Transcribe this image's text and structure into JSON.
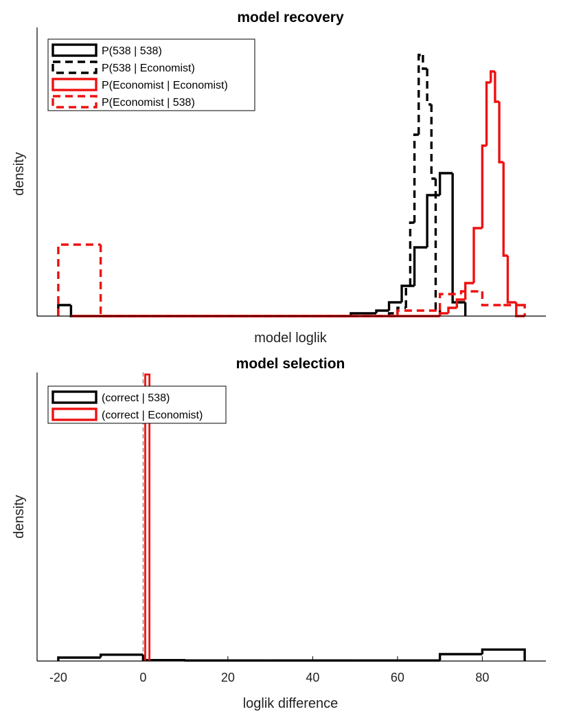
{
  "colors": {
    "black": "#000000",
    "red": "#ee1111"
  },
  "chart_data": [
    {
      "type": "histogram",
      "title": "model recovery",
      "xlabel": "model loglik",
      "ylabel": "density",
      "xlim": [
        -25,
        95
      ],
      "ylim": [
        0,
        1
      ],
      "y_ticks_shown": false,
      "legend_placement": "top-left",
      "series": [
        {
          "name": "P(538 | 538)",
          "color": "#000000",
          "style": "solid",
          "edges": [
            -20,
            -17,
            -14,
            -11,
            -8,
            -5,
            -2,
            1,
            4,
            7,
            10,
            13,
            16,
            19,
            22,
            25,
            28,
            31,
            34,
            37,
            40,
            43,
            46,
            49,
            52,
            55,
            58,
            61,
            64,
            67,
            70,
            73,
            76
          ],
          "density": [
            0.04,
            0,
            0,
            0,
            0,
            0,
            0,
            0,
            0,
            0,
            0,
            0,
            0,
            0,
            0,
            0,
            0,
            0,
            0,
            0,
            0,
            0,
            0,
            0.01,
            0.01,
            0.02,
            0.05,
            0.11,
            0.25,
            0.44,
            0.52,
            0.05,
            0
          ]
        },
        {
          "name": "P(538 | Economist)",
          "color": "#000000",
          "style": "dashed",
          "edges": [
            58,
            60,
            62,
            63,
            64,
            65,
            66,
            67,
            68,
            69,
            70
          ],
          "density": [
            0.01,
            0.03,
            0.11,
            0.34,
            0.66,
            0.95,
            0.9,
            0.77,
            0.5,
            0.02
          ]
        },
        {
          "name": "P(Economist | Economist)",
          "color": "#ee1111",
          "style": "solid",
          "edges": [
            -17,
            70,
            72,
            74,
            76,
            78,
            80,
            81,
            82,
            83,
            84,
            85,
            86,
            88,
            90
          ],
          "density": [
            0,
            0.01,
            0.03,
            0.06,
            0.12,
            0.32,
            0.62,
            0.85,
            0.89,
            0.78,
            0.56,
            0.22,
            0.05,
            0
          ]
        },
        {
          "name": "P(Economist | 538)",
          "color": "#ee1111",
          "style": "dashed",
          "edges": [
            -20,
            -10,
            60,
            70,
            75,
            80,
            85,
            89,
            90
          ],
          "density": [
            0.26,
            0,
            0.02,
            0.08,
            0.09,
            0.04,
            0.04,
            0.04
          ]
        }
      ]
    },
    {
      "type": "histogram",
      "title": "model selection",
      "xlabel": "loglik difference",
      "ylabel": "density",
      "xlim": [
        -25,
        95
      ],
      "ylim": [
        0,
        1
      ],
      "y_ticks_shown": false,
      "x_ticks": [
        -20,
        0,
        20,
        40,
        60,
        80
      ],
      "legend_placement": "top-left",
      "reference_line_x": 0,
      "series": [
        {
          "name": "(correct | 538)",
          "color": "#000000",
          "style": "solid",
          "edges": [
            -20,
            -10,
            0,
            10,
            20,
            30,
            40,
            50,
            60,
            70,
            80,
            90
          ],
          "density": [
            0.012,
            0.022,
            0.003,
            0.002,
            0.002,
            0.002,
            0.002,
            0.002,
            0.002,
            0.024,
            0.04
          ]
        },
        {
          "name": "(correct | Economist)",
          "color": "#ee1111",
          "style": "solid",
          "edges": [
            0.5,
            1.5
          ],
          "density": [
            1.0
          ]
        }
      ]
    }
  ]
}
